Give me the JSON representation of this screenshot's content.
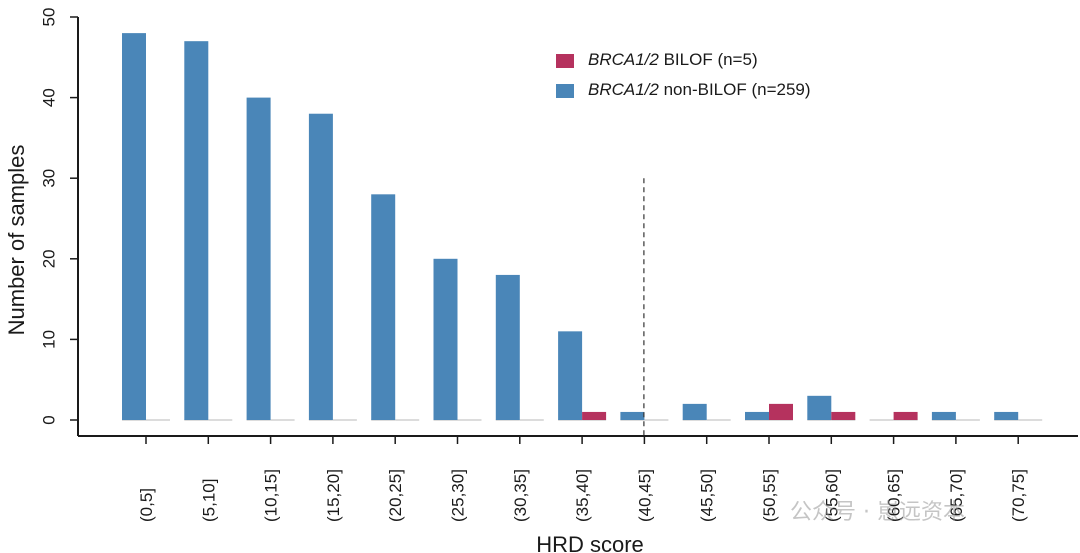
{
  "chart_data": {
    "type": "bar",
    "title": "",
    "xlabel": "HRD score",
    "ylabel": "Number of samples",
    "ylim": [
      0,
      50
    ],
    "yticks": [
      0,
      10,
      20,
      30,
      40,
      50
    ],
    "categories": [
      "(0,5]",
      "(5,10]",
      "(10,15]",
      "(15,20]",
      "(20,25]",
      "(25,30]",
      "(30,35]",
      "(35,40]",
      "(40,45]",
      "(45,50]",
      "(50,55]",
      "(55,60]",
      "(60,65]",
      "(65,70]",
      "(70,75]"
    ],
    "series": [
      {
        "name_italic": "BRCA1/2",
        "name_rest": " non-BILOF (n=259)",
        "name": "BRCA1/2 non-BILOF (n=259)",
        "color": "#4a86b8",
        "values": [
          48,
          47,
          40,
          38,
          28,
          20,
          18,
          11,
          1,
          2,
          1,
          3,
          0,
          1,
          1
        ]
      },
      {
        "name_italic": "BRCA1/2",
        "name_rest": " BILOF (n=5)",
        "name": "BRCA1/2 BILOF (n=5)",
        "color": "#b5325e",
        "values": [
          0,
          0,
          0,
          0,
          0,
          0,
          0,
          1,
          0,
          0,
          2,
          1,
          1,
          0,
          0
        ]
      }
    ],
    "threshold_line": {
      "x_between": "(35,40] | (40,45]",
      "value": 42,
      "style": "dashed"
    },
    "legend_position": "top-right",
    "grid": false
  },
  "watermark": {
    "text": "公众号 · 崽远资本"
  }
}
